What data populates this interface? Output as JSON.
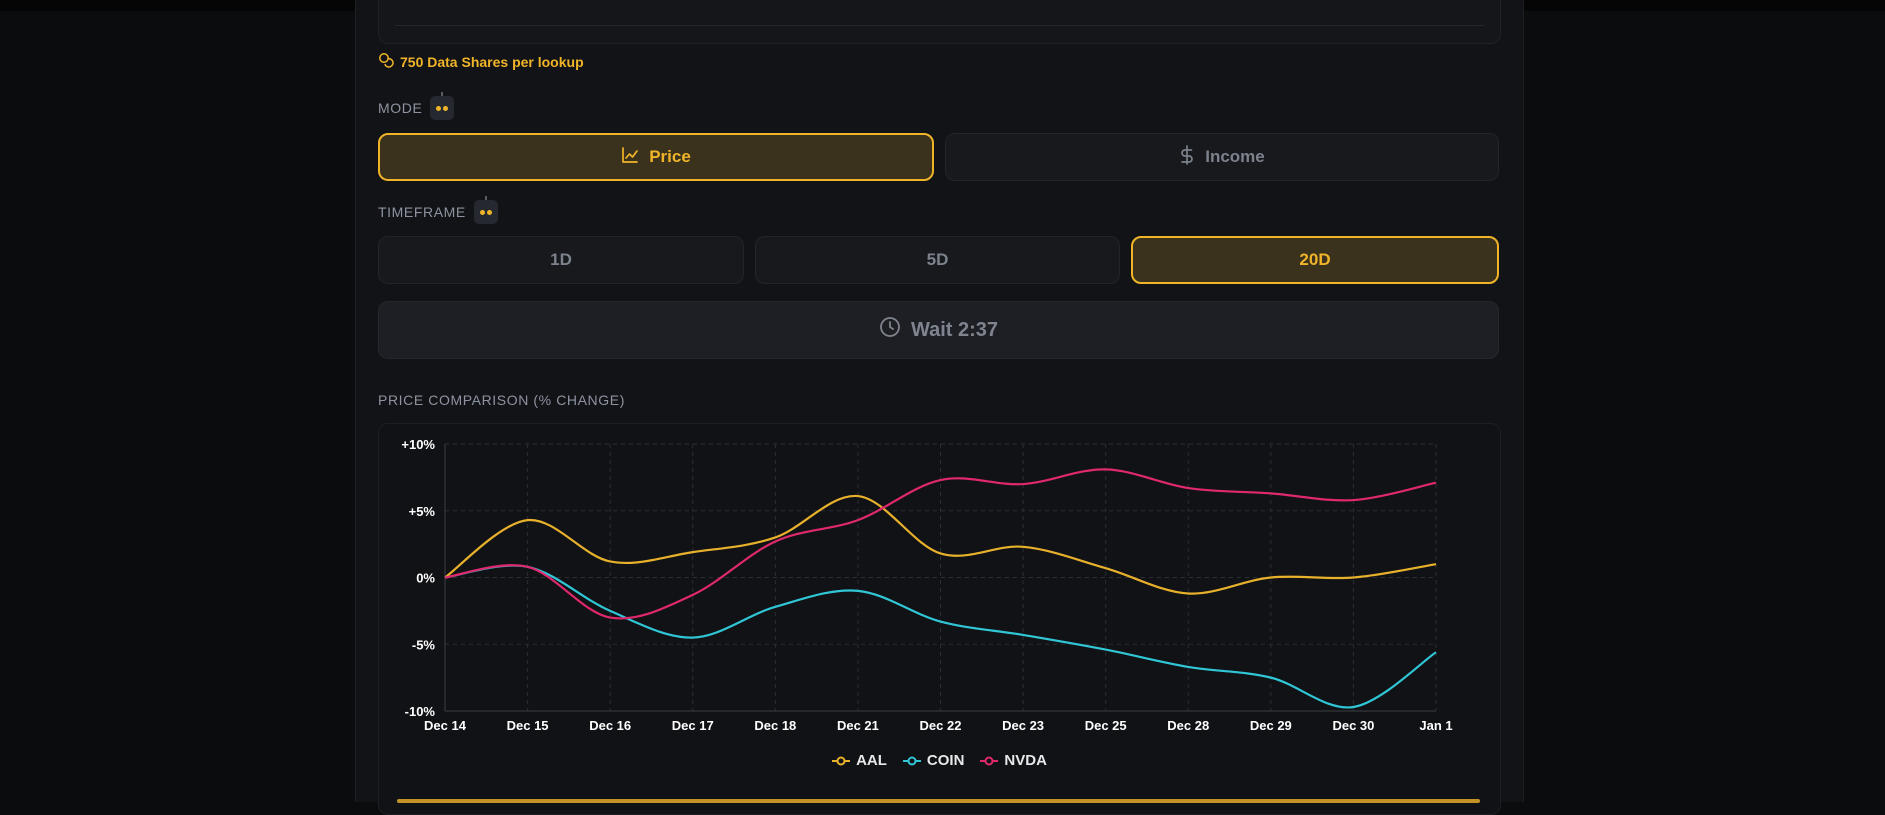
{
  "cost": {
    "text": "750 Data Shares per lookup"
  },
  "mode": {
    "label": "MODE",
    "options": [
      {
        "label": "Price",
        "icon": "line-chart-icon",
        "active": true
      },
      {
        "label": "Income",
        "icon": "dollar-icon",
        "active": false
      }
    ]
  },
  "timeframe": {
    "label": "TIMEFRAME",
    "options": [
      {
        "label": "1D",
        "active": false
      },
      {
        "label": "5D",
        "active": false
      },
      {
        "label": "20D",
        "active": true
      }
    ]
  },
  "wait": {
    "label": "Wait 2:37",
    "icon": "clock-icon"
  },
  "chart_section": {
    "title": "PRICE COMPARISON (% CHANGE)"
  },
  "colors": {
    "accent": "#f0b429",
    "aal": "#e8b12c",
    "coin": "#30c6d6",
    "nvda": "#e0286e"
  },
  "chart_data": {
    "type": "line",
    "title": "",
    "categories": [
      "Dec 14",
      "Dec 15",
      "Dec 16",
      "Dec 17",
      "Dec 18",
      "Dec 21",
      "Dec 22",
      "Dec 23",
      "Dec 25",
      "Dec 28",
      "Dec 29",
      "Dec 30",
      "Jan 1"
    ],
    "yticks": [
      "+10%",
      "+5%",
      "0%",
      "-5%",
      "-10%"
    ],
    "ylim": [
      -10,
      10
    ],
    "grid": true,
    "legend_position": "bottom",
    "series": [
      {
        "name": "AAL",
        "color": "#e8b12c",
        "values": [
          0,
          4.3,
          1.2,
          1.9,
          3.0,
          6.1,
          1.8,
          2.3,
          0.7,
          -1.2,
          0.0,
          0.0,
          1.0
        ]
      },
      {
        "name": "COIN",
        "color": "#30c6d6",
        "values": [
          0,
          0.8,
          -2.5,
          -4.5,
          -2.2,
          -1.0,
          -3.3,
          -4.3,
          -5.4,
          -6.7,
          -7.5,
          -9.7,
          -5.6
        ]
      },
      {
        "name": "NVDA",
        "color": "#e0286e",
        "values": [
          0,
          0.8,
          -3.0,
          -1.3,
          2.7,
          4.3,
          7.3,
          7.0,
          8.1,
          6.7,
          6.3,
          5.8,
          7.1
        ]
      }
    ]
  }
}
